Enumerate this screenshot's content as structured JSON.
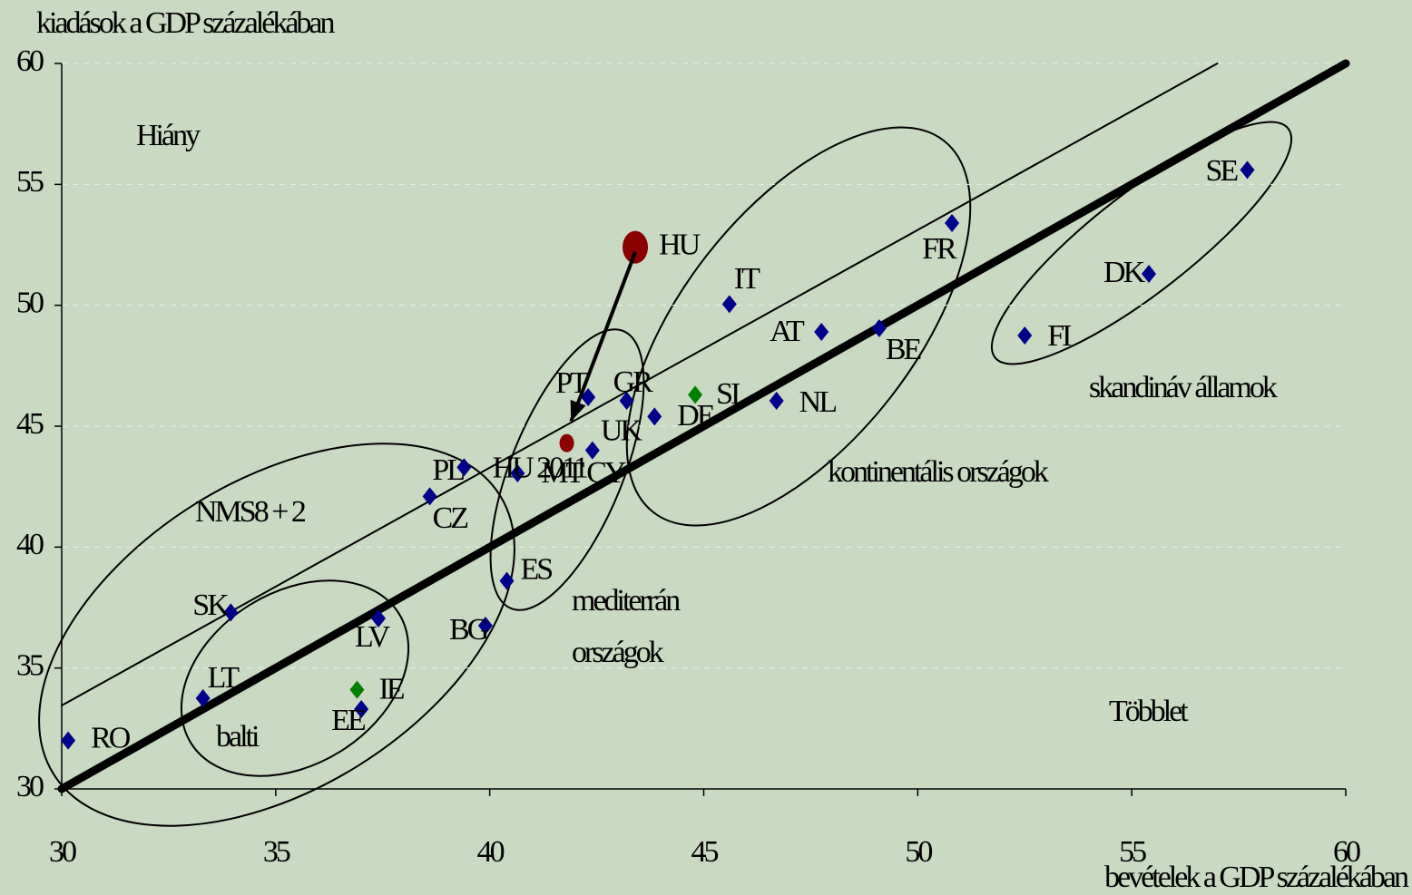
{
  "chart_data": {
    "type": "scatter",
    "y_axis_label": "kiadások a GDP százalékában",
    "x_axis_label": "bevételek a GDP százalékában",
    "xlim": [
      30,
      60
    ],
    "ylim": [
      30,
      60
    ],
    "xticks": [
      30,
      35,
      40,
      45,
      50,
      55,
      60
    ],
    "yticks": [
      30,
      35,
      40,
      45,
      50,
      55,
      60
    ],
    "grid": true,
    "points": [
      {
        "label": "RO",
        "x": 30.15,
        "y": 32.0,
        "color": "#00008b",
        "marker": "diamond"
      },
      {
        "label": "LT",
        "x": 33.3,
        "y": 33.75,
        "color": "#00008b",
        "marker": "diamond"
      },
      {
        "label": "SK",
        "x": 33.95,
        "y": 37.3,
        "color": "#00008b",
        "marker": "diamond"
      },
      {
        "label": "EE",
        "x": 37.0,
        "y": 33.3,
        "color": "#00008b",
        "marker": "diamond"
      },
      {
        "label": "LV",
        "x": 37.4,
        "y": 37.05,
        "color": "#00008b",
        "marker": "diamond"
      },
      {
        "label": "PL",
        "x": 39.4,
        "y": 43.3,
        "color": "#00008b",
        "marker": "diamond"
      },
      {
        "label": "CZ",
        "x": 38.6,
        "y": 42.1,
        "color": "#00008b",
        "marker": "diamond"
      },
      {
        "label": "BG",
        "x": 39.9,
        "y": 36.75,
        "color": "#00008b",
        "marker": "diamond"
      },
      {
        "label": "ES",
        "x": 40.4,
        "y": 38.6,
        "color": "#00008b",
        "marker": "diamond"
      },
      {
        "label": "MT CY",
        "x": 40.65,
        "y": 43.05,
        "color": "#00008b",
        "marker": "diamond"
      },
      {
        "label": "UK",
        "x": 42.4,
        "y": 44.0,
        "color": "#00008b",
        "marker": "diamond"
      },
      {
        "label": "PT",
        "x": 42.3,
        "y": 46.2,
        "color": "#00008b",
        "marker": "diamond"
      },
      {
        "label": "GR",
        "x": 43.2,
        "y": 46.05,
        "color": "#00008b",
        "marker": "diamond"
      },
      {
        "label": "DE",
        "x": 43.85,
        "y": 45.4,
        "color": "#00008b",
        "marker": "diamond"
      },
      {
        "label": "SI",
        "x": 44.8,
        "y": 46.3,
        "color": "#008000",
        "marker": "diamond"
      },
      {
        "label": "NL",
        "x": 46.7,
        "y": 46.05,
        "color": "#00008b",
        "marker": "diamond"
      },
      {
        "label": "IT",
        "x": 45.6,
        "y": 50.05,
        "color": "#00008b",
        "marker": "diamond"
      },
      {
        "label": "AT",
        "x": 47.75,
        "y": 48.9,
        "color": "#00008b",
        "marker": "diamond"
      },
      {
        "label": "BE",
        "x": 49.1,
        "y": 49.05,
        "color": "#00008b",
        "marker": "diamond"
      },
      {
        "label": "FR",
        "x": 50.8,
        "y": 53.4,
        "color": "#00008b",
        "marker": "diamond"
      },
      {
        "label": "FI",
        "x": 52.5,
        "y": 48.75,
        "color": "#00008b",
        "marker": "diamond"
      },
      {
        "label": "DK",
        "x": 55.4,
        "y": 51.3,
        "color": "#00008b",
        "marker": "diamond"
      },
      {
        "label": "SE",
        "x": 57.7,
        "y": 55.6,
        "color": "#00008b",
        "marker": "diamond"
      },
      {
        "label": "IE",
        "x": 36.9,
        "y": 34.1,
        "color": "#008000",
        "marker": "diamond"
      },
      {
        "label": "HU",
        "x": 43.4,
        "y": 52.4,
        "color": "#8b0000",
        "marker": "circle"
      },
      {
        "label": "HU 2011",
        "x": 41.8,
        "y": 44.3,
        "color": "#8b0000",
        "marker": "small-circle"
      }
    ],
    "lines": [
      {
        "x": [
          30,
          60
        ],
        "y": [
          30,
          60
        ],
        "width": 9
      },
      {
        "x": [
          30,
          57
        ],
        "y": [
          33.45,
          60
        ],
        "width": 2
      }
    ],
    "arrow": {
      "x": [
        43.4,
        41.9
      ],
      "y": [
        52.2,
        45.2
      ]
    },
    "annotations": [
      "Hiány",
      "NMS8 + 2",
      "balti",
      "mediterrán",
      "országok",
      "kontinentális országok",
      "skandináv államok",
      "Többlet"
    ]
  }
}
